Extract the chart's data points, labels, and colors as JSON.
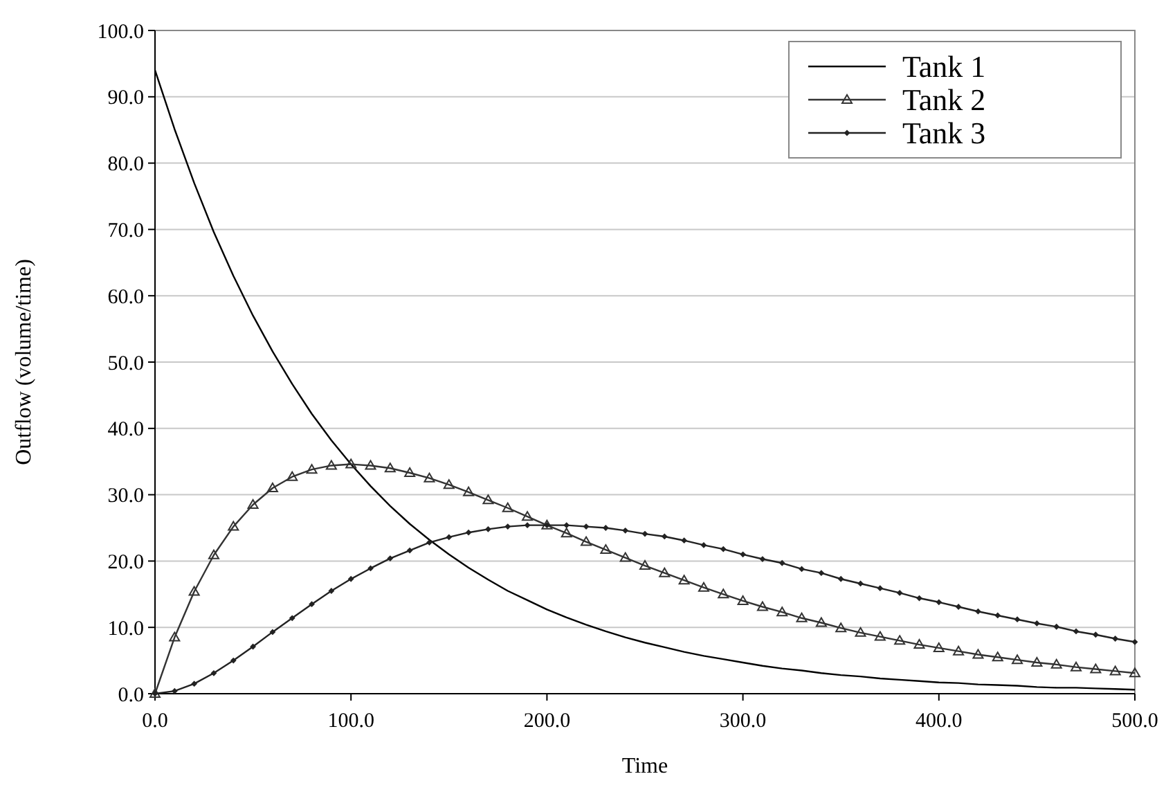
{
  "chart_data": {
    "type": "line",
    "xlabel": "Time",
    "ylabel": "Outflow (volume/time)",
    "x": [
      0,
      10,
      20,
      30,
      40,
      50,
      60,
      70,
      80,
      90,
      100,
      110,
      120,
      130,
      140,
      150,
      160,
      170,
      180,
      190,
      200,
      210,
      220,
      230,
      240,
      250,
      260,
      270,
      280,
      290,
      300,
      310,
      320,
      330,
      340,
      350,
      360,
      370,
      380,
      390,
      400,
      410,
      420,
      430,
      440,
      450,
      460,
      470,
      480,
      490,
      500
    ],
    "series": [
      {
        "name": "Tank 1",
        "color": "#000000",
        "marker": "none",
        "values": [
          94.0,
          85.1,
          77.0,
          69.6,
          63.0,
          57.0,
          51.6,
          46.7,
          42.2,
          38.2,
          34.6,
          31.3,
          28.3,
          25.6,
          23.2,
          21.0,
          19.0,
          17.2,
          15.5,
          14.1,
          12.7,
          11.5,
          10.4,
          9.4,
          8.5,
          7.7,
          7.0,
          6.3,
          5.7,
          5.2,
          4.7,
          4.2,
          3.8,
          3.5,
          3.1,
          2.8,
          2.6,
          2.3,
          2.1,
          1.9,
          1.7,
          1.6,
          1.4,
          1.3,
          1.2,
          1.0,
          0.9,
          0.9,
          0.8,
          0.7,
          0.6
        ]
      },
      {
        "name": "Tank 2",
        "color": "#333333",
        "marker": "triangle",
        "values": [
          0,
          8.5,
          15.4,
          20.9,
          25.2,
          28.5,
          31.0,
          32.7,
          33.8,
          34.4,
          34.6,
          34.4,
          34.0,
          33.3,
          32.5,
          31.5,
          30.4,
          29.2,
          28.0,
          26.7,
          25.4,
          24.2,
          22.9,
          21.7,
          20.5,
          19.3,
          18.2,
          17.1,
          16.0,
          15.0,
          14.0,
          13.1,
          12.3,
          11.4,
          10.7,
          9.9,
          9.2,
          8.6,
          8.0,
          7.4,
          6.9,
          6.4,
          5.9,
          5.5,
          5.1,
          4.7,
          4.4,
          4.0,
          3.7,
          3.4,
          3.1
        ]
      },
      {
        "name": "Tank 3",
        "color": "#222222",
        "marker": "diamond",
        "values": [
          0,
          0.4,
          1.5,
          3.1,
          5.0,
          7.1,
          9.3,
          11.4,
          13.5,
          15.5,
          17.3,
          18.9,
          20.4,
          21.6,
          22.8,
          23.6,
          24.3,
          24.8,
          25.2,
          25.4,
          25.4,
          25.4,
          25.2,
          25.0,
          24.6,
          24.1,
          23.7,
          23.1,
          22.4,
          21.8,
          21.0,
          20.3,
          19.7,
          18.8,
          18.2,
          17.3,
          16.6,
          15.9,
          15.2,
          14.4,
          13.8,
          13.1,
          12.4,
          11.8,
          11.2,
          10.6,
          10.1,
          9.4,
          8.9,
          8.3,
          7.8
        ]
      }
    ],
    "xlim": [
      0,
      500
    ],
    "xticks": [
      {
        "value": 0,
        "label": "0.0"
      },
      {
        "value": 100,
        "label": "100.0"
      },
      {
        "value": 200,
        "label": "200.0"
      },
      {
        "value": 300,
        "label": "300.0"
      },
      {
        "value": 400,
        "label": "400.0"
      },
      {
        "value": 500,
        "label": "500.0"
      }
    ],
    "ylim": [
      0,
      100
    ],
    "yticks": [
      {
        "value": 0,
        "label": "0.0"
      },
      {
        "value": 10,
        "label": "10.0"
      },
      {
        "value": 20,
        "label": "20.0"
      },
      {
        "value": 30,
        "label": "30.0"
      },
      {
        "value": 40,
        "label": "40.0"
      },
      {
        "value": 50,
        "label": "50.0"
      },
      {
        "value": 60,
        "label": "60.0"
      },
      {
        "value": 70,
        "label": "70.0"
      },
      {
        "value": 80,
        "label": "80.0"
      },
      {
        "value": 90,
        "label": "90.0"
      },
      {
        "value": 100,
        "label": "100.0"
      }
    ],
    "grid": "y",
    "legend": "top right",
    "line_style": "solid"
  }
}
